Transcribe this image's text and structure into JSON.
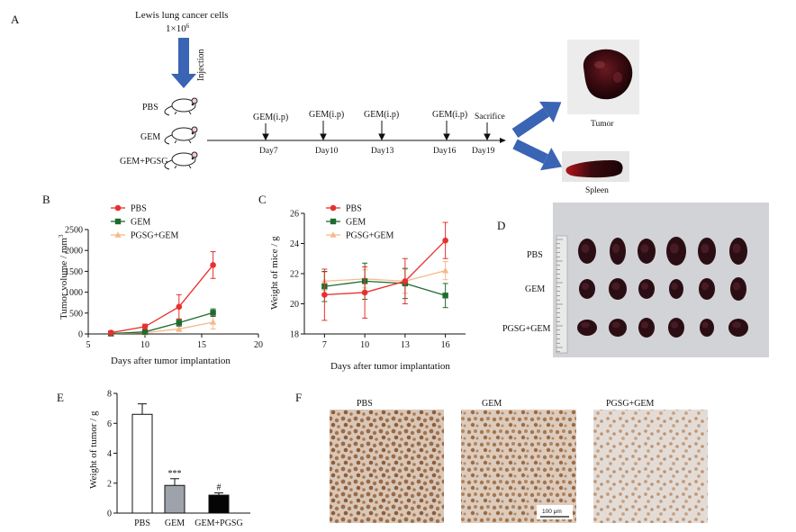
{
  "panels": {
    "a": "A",
    "b": "B",
    "c": "C",
    "d": "D",
    "e": "E",
    "f": "F"
  },
  "schematic": {
    "cells_line1": "Lewis lung cancer cells",
    "cells_line2": "1×10",
    "cells_exp": "6",
    "injection": "Injection",
    "groups": [
      "PBS",
      "GEM",
      "GEM+PGSG"
    ],
    "treatments": [
      "GEM(i.p)",
      "GEM(i.p)",
      "GEM(i.p)",
      "GEM(i.p)",
      "Sacrifice"
    ],
    "days": [
      "Day7",
      "Day10",
      "Day13",
      "Day16",
      "Day19"
    ],
    "tumor_label": "Tumor",
    "spleen_label": "Spleen"
  },
  "colors": {
    "pbs": "#e8302f",
    "gem": "#1f6b2e",
    "pgsg": "#f6b98a",
    "arrow": "#3a64b4"
  },
  "chart_data": [
    {
      "type": "line",
      "panel": "B",
      "xlabel": "Days after tumor implantation",
      "ylabel": "Tumor volume / mm",
      "ylabel_exp": "3",
      "xlim": [
        5,
        20
      ],
      "ylim": [
        0,
        2500
      ],
      "xticks": [
        5,
        10,
        15,
        20
      ],
      "yticks": [
        0,
        500,
        1000,
        1500,
        2000,
        2500
      ],
      "x": [
        7,
        10,
        13,
        16
      ],
      "legend_position": "top-left",
      "series": [
        {
          "name": "PBS",
          "values": [
            30,
            175,
            650,
            1650
          ],
          "errors": [
            40,
            60,
            290,
            320
          ],
          "marker": "circle",
          "color": "#e8302f"
        },
        {
          "name": "GEM",
          "values": [
            10,
            50,
            270,
            510
          ],
          "errors": [
            20,
            30,
            80,
            90
          ],
          "marker": "square",
          "color": "#1f6b2e"
        },
        {
          "name": "PGSG+GEM",
          "values": [
            5,
            30,
            120,
            280
          ],
          "errors": [
            10,
            20,
            60,
            160
          ],
          "marker": "triangle",
          "color": "#f6b98a"
        }
      ]
    },
    {
      "type": "line",
      "panel": "C",
      "xlabel": "Days after tumor implantation",
      "ylabel": "Weight of mice / g",
      "ylim": [
        18,
        26
      ],
      "xticks": [
        7,
        10,
        13,
        16
      ],
      "yticks": [
        18,
        20,
        22,
        24,
        26
      ],
      "x": [
        7,
        10,
        13,
        16
      ],
      "legend_position": "top-left",
      "series": [
        {
          "name": "PBS",
          "values": [
            20.6,
            20.75,
            21.5,
            24.2
          ],
          "errors": [
            1.7,
            1.7,
            1.5,
            1.2
          ],
          "marker": "circle",
          "color": "#e8302f"
        },
        {
          "name": "GEM",
          "values": [
            21.15,
            21.5,
            21.35,
            20.55
          ],
          "errors": [
            1.0,
            1.2,
            1.0,
            0.8
          ],
          "marker": "square",
          "color": "#1f6b2e"
        },
        {
          "name": "PGSG+GEM",
          "values": [
            21.5,
            21.65,
            21.5,
            22.2
          ],
          "errors": [
            0.6,
            0.6,
            0.8,
            0.6
          ],
          "marker": "triangle",
          "color": "#f6b98a"
        }
      ]
    },
    {
      "type": "bar",
      "panel": "E",
      "ylabel": "Weight of tumor / g",
      "ylim": [
        0,
        8
      ],
      "yticks": [
        0,
        2,
        4,
        6,
        8
      ],
      "categories": [
        "PBS",
        "GEM",
        "GEM+PGSG"
      ],
      "values": [
        6.6,
        1.85,
        1.2
      ],
      "errors": [
        0.7,
        0.45,
        0.15
      ],
      "fills": [
        "#ffffff",
        "#9ea3ab",
        "#050505"
      ],
      "annotations": [
        "",
        "***",
        "#"
      ]
    }
  ],
  "panel_d": {
    "rows": [
      "PBS",
      "GEM",
      "PGSG+GEM"
    ]
  },
  "panel_f": {
    "titles": [
      "PBS",
      "GEM",
      "PGSG+GEM"
    ],
    "scalebar": "100 μm"
  }
}
